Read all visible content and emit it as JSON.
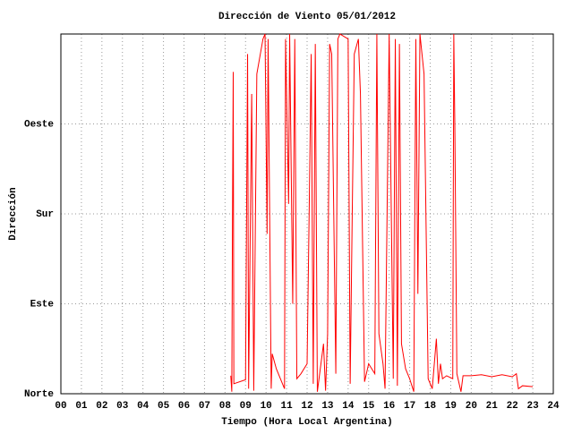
{
  "chart_data": {
    "type": "line",
    "title": "Dirección de Viento 05/01/2012",
    "xlabel": "Tiempo (Hora Local Argentina)",
    "ylabel": "Dirección",
    "xlim": [
      0,
      24
    ],
    "ylim": [
      0,
      360
    ],
    "xticks": [
      {
        "value": 0,
        "label": "00"
      },
      {
        "value": 1,
        "label": "01"
      },
      {
        "value": 2,
        "label": "02"
      },
      {
        "value": 3,
        "label": "03"
      },
      {
        "value": 4,
        "label": "04"
      },
      {
        "value": 5,
        "label": "05"
      },
      {
        "value": 6,
        "label": "06"
      },
      {
        "value": 7,
        "label": "07"
      },
      {
        "value": 8,
        "label": "08"
      },
      {
        "value": 9,
        "label": "09"
      },
      10,
      11,
      12,
      13,
      14,
      15,
      16,
      17,
      18,
      19,
      20,
      21,
      22,
      23,
      24
    ],
    "yticks": [
      {
        "value": 0,
        "label": "Norte"
      },
      {
        "value": 90,
        "label": "Este"
      },
      {
        "value": 180,
        "label": "Sur"
      },
      {
        "value": 270,
        "label": "Oeste"
      }
    ],
    "grid": true,
    "color": "#ff0000",
    "x": [
      8.28,
      8.33,
      8.36,
      8.4,
      8.43,
      9.0,
      9.05,
      9.1,
      9.15,
      9.3,
      9.4,
      9.55,
      9.85,
      9.95,
      10.05,
      10.1,
      10.25,
      10.3,
      10.5,
      10.9,
      10.95,
      11.1,
      11.15,
      11.3,
      11.4,
      11.5,
      11.7,
      12.0,
      12.1,
      12.2,
      12.3,
      12.4,
      12.5,
      12.8,
      12.9,
      13.0,
      13.1,
      13.2,
      13.4,
      13.5,
      13.6,
      14.0,
      14.1,
      14.2,
      14.3,
      14.5,
      14.6,
      14.8,
      15.0,
      15.3,
      15.4,
      15.5,
      15.7,
      15.8,
      16.0,
      16.2,
      16.3,
      16.4,
      16.5,
      16.6,
      16.8,
      17.0,
      17.2,
      17.3,
      17.4,
      17.5,
      17.7,
      17.9,
      18.1,
      18.3,
      18.4,
      18.5,
      18.6,
      18.8,
      19.1,
      19.15,
      19.2,
      19.3,
      19.5,
      19.6,
      20.0,
      20.5,
      21.0,
      21.5,
      22.0,
      22.2,
      22.3,
      22.5,
      23.0
    ],
    "values": [
      18,
      2,
      160,
      322,
      10,
      14,
      178,
      340,
      5,
      300,
      3,
      320,
      355,
      360,
      160,
      355,
      5,
      40,
      25,
      5,
      355,
      190,
      360,
      90,
      355,
      15,
      20,
      30,
      180,
      340,
      10,
      350,
      2,
      50,
      3,
      60,
      350,
      340,
      20,
      355,
      360,
      355,
      10,
      180,
      340,
      355,
      300,
      12,
      30,
      20,
      360,
      60,
      30,
      5,
      360,
      15,
      355,
      8,
      350,
      50,
      25,
      15,
      2,
      355,
      100,
      360,
      320,
      15,
      5,
      55,
      10,
      30,
      15,
      18,
      15,
      360,
      270,
      20,
      2,
      18,
      18,
      19,
      17,
      19,
      17,
      20,
      5,
      8,
      7
    ]
  }
}
